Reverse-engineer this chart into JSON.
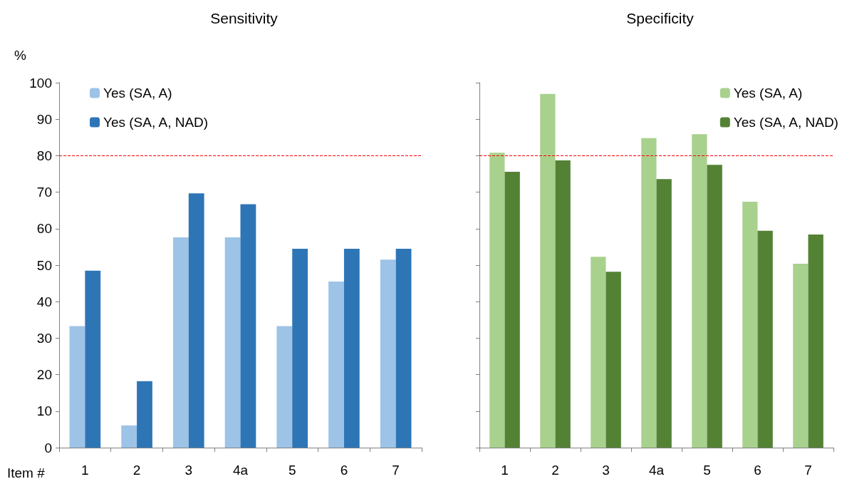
{
  "chart_data": [
    {
      "type": "bar",
      "title": "Sensitivity",
      "xlabel": "Item #",
      "ylabel": "%",
      "categories": [
        "1",
        "2",
        "3",
        "4a",
        "5",
        "6",
        "7"
      ],
      "series": [
        {
          "name": "Yes (SA, A)",
          "color": "#9dc3e6",
          "values": [
            33.3,
            6.1,
            57.6,
            57.6,
            33.3,
            45.5,
            51.5
          ]
        },
        {
          "name": "Yes (SA, A, NAD)",
          "color": "#2e75b6",
          "values": [
            48.5,
            18.2,
            69.7,
            66.7,
            54.5,
            54.5,
            54.5
          ]
        }
      ],
      "ylim": [
        0,
        100
      ],
      "yticks": [
        0,
        10,
        20,
        30,
        40,
        50,
        60,
        70,
        80,
        90,
        100
      ],
      "grid": false,
      "legend": "top left",
      "ref_lines": [
        {
          "axis": "y",
          "value": 80,
          "color": "#ff0000",
          "line_style": "dashed"
        }
      ]
    },
    {
      "type": "bar",
      "title": "Specificity",
      "categories": [
        "1",
        "2",
        "3",
        "4a",
        "5",
        "6",
        "7"
      ],
      "series": [
        {
          "name": "Yes (SA, A)",
          "color": "#a9d18e",
          "values": [
            80.8,
            96.9,
            52.3,
            84.8,
            85.9,
            67.4,
            50.4
          ]
        },
        {
          "name": "Yes (SA, A, NAD)",
          "color": "#548235",
          "values": [
            75.6,
            78.7,
            48.2,
            73.6,
            77.5,
            59.4,
            58.4
          ]
        }
      ],
      "ylim": [
        0,
        100
      ],
      "yticks": [
        0,
        10,
        20,
        30,
        40,
        50,
        60,
        70,
        80,
        90,
        100
      ],
      "tick_labels": "x",
      "grid": false,
      "legend": "top right",
      "ref_lines": [
        {
          "axis": "y",
          "value": 80,
          "color": "#ff0000",
          "line_style": "dashed"
        }
      ]
    }
  ]
}
